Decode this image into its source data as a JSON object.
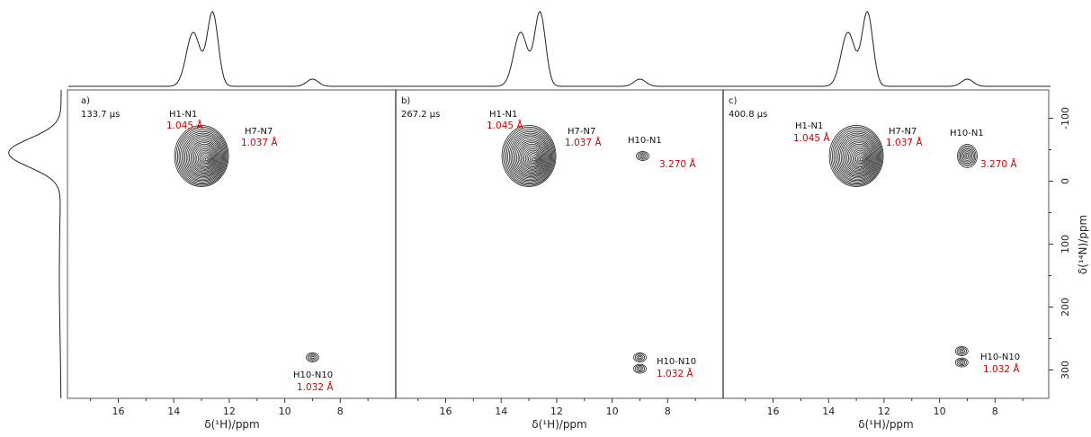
{
  "chart_data": {
    "type": "heatmap",
    "x_axis": {
      "label": "δ(¹H)/ppm",
      "reversed": true,
      "range": [
        17.8,
        6.0
      ],
      "ticks": [
        16,
        14,
        12,
        10,
        8
      ]
    },
    "y_axis": {
      "label": "δ(¹⁴N)/ppm",
      "reversed": true,
      "range": [
        -145,
        345
      ],
      "ticks": [
        -100,
        0,
        100,
        200,
        300
      ],
      "position": "right"
    },
    "top_projection": {
      "axis": "δ(¹H)/ppm",
      "peaks_ppm": [
        13.3,
        12.6,
        9.0
      ]
    },
    "side_projection": {
      "axis": "δ(¹⁴N)/ppm",
      "peaks_ppm": [
        -45
      ]
    },
    "panels": [
      {
        "label": "a)",
        "time": "133.7 μs",
        "annotations": [
          {
            "name": "H1-N1",
            "distance": "1.045 Å"
          },
          {
            "name": "H7-N7",
            "distance": "1.037 Å"
          },
          {
            "name": "H10-N10",
            "distance": "1.032 Å"
          }
        ],
        "peaks": [
          {
            "x": 13.0,
            "y": -40,
            "shape": "big"
          },
          {
            "x": 9.0,
            "y": 280,
            "shape": "small"
          }
        ]
      },
      {
        "label": "b)",
        "time": "267.2 μs",
        "annotations": [
          {
            "name": "H1-N1",
            "distance": "1.045 Å"
          },
          {
            "name": "H7-N7",
            "distance": "1.037 Å"
          },
          {
            "name": "H10-N1",
            "distance": "3.270 Å"
          },
          {
            "name": "H10-N10",
            "distance": "1.032 Å"
          }
        ],
        "peaks": [
          {
            "x": 13.0,
            "y": -40,
            "shape": "big"
          },
          {
            "x": 8.9,
            "y": -40,
            "shape": "small"
          },
          {
            "x": 9.0,
            "y": 280,
            "shape": "small"
          },
          {
            "x": 9.0,
            "y": 298,
            "shape": "small"
          }
        ]
      },
      {
        "label": "c)",
        "time": "400.8 μs",
        "annotations": [
          {
            "name": "H1-N1",
            "distance": "1.045 Å"
          },
          {
            "name": "H7-N7",
            "distance": "1.037 Å"
          },
          {
            "name": "H10-N1",
            "distance": "3.270 Å"
          },
          {
            "name": "H10-N10",
            "distance": "1.032 Å"
          }
        ],
        "peaks": [
          {
            "x": 13.0,
            "y": -40,
            "shape": "big"
          },
          {
            "x": 9.0,
            "y": -40,
            "shape": "medium"
          },
          {
            "x": 9.2,
            "y": 270,
            "shape": "small"
          },
          {
            "x": 9.2,
            "y": 288,
            "shape": "small"
          }
        ]
      }
    ]
  }
}
